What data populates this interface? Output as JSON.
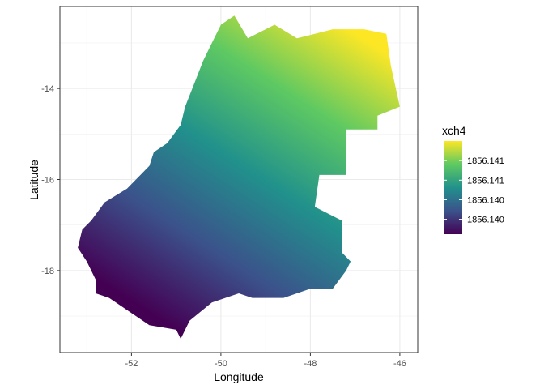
{
  "chart_data": {
    "type": "heatmap",
    "title": "",
    "xlabel": "Longitude",
    "ylabel": "Latitude",
    "xlim": [
      -53.6,
      -45.6
    ],
    "ylim": [
      -19.8,
      -12.2
    ],
    "x_ticks": [
      {
        "value": -52,
        "label": "-52"
      },
      {
        "value": -50,
        "label": "-50"
      },
      {
        "value": -48,
        "label": "-48"
      },
      {
        "value": -46,
        "label": "-46"
      }
    ],
    "y_ticks": [
      {
        "value": -14,
        "label": "-14"
      },
      {
        "value": -16,
        "label": "-16"
      },
      {
        "value": -18,
        "label": "-18"
      }
    ],
    "grid": true,
    "legend": {
      "title": "xch4",
      "position": "right",
      "labels": [
        "1856.141",
        "1856.141",
        "1856.140",
        "1856.140"
      ],
      "label_levels": [
        0.79,
        0.58,
        0.37,
        0.16
      ],
      "colors": [
        "#440154",
        "#3b528b",
        "#21918c",
        "#5ec962",
        "#fde725"
      ]
    },
    "region_outline_lonlat": [
      [
        -49.7,
        -12.4
      ],
      [
        -49.4,
        -12.9
      ],
      [
        -48.8,
        -12.6
      ],
      [
        -48.3,
        -12.9
      ],
      [
        -47.5,
        -12.7
      ],
      [
        -46.8,
        -12.7
      ],
      [
        -46.3,
        -12.8
      ],
      [
        -46.2,
        -13.5
      ],
      [
        -46.0,
        -14.4
      ],
      [
        -46.5,
        -14.6
      ],
      [
        -46.5,
        -14.9
      ],
      [
        -47.2,
        -14.9
      ],
      [
        -47.2,
        -15.9
      ],
      [
        -47.8,
        -15.9
      ],
      [
        -47.9,
        -16.6
      ],
      [
        -47.3,
        -16.9
      ],
      [
        -47.3,
        -17.6
      ],
      [
        -47.1,
        -17.8
      ],
      [
        -47.2,
        -18.0
      ],
      [
        -47.5,
        -18.4
      ],
      [
        -48.0,
        -18.4
      ],
      [
        -48.6,
        -18.6
      ],
      [
        -49.3,
        -18.6
      ],
      [
        -49.6,
        -18.5
      ],
      [
        -50.2,
        -18.7
      ],
      [
        -50.7,
        -19.1
      ],
      [
        -50.9,
        -19.5
      ],
      [
        -51.0,
        -19.3
      ],
      [
        -51.6,
        -19.2
      ],
      [
        -52.2,
        -18.8
      ],
      [
        -52.5,
        -18.6
      ],
      [
        -52.8,
        -18.5
      ],
      [
        -52.8,
        -18.2
      ],
      [
        -53.0,
        -17.8
      ],
      [
        -53.2,
        -17.5
      ],
      [
        -53.1,
        -17.1
      ],
      [
        -52.9,
        -16.9
      ],
      [
        -52.6,
        -16.5
      ],
      [
        -52.1,
        -16.2
      ],
      [
        -51.8,
        -15.9
      ],
      [
        -51.6,
        -15.7
      ],
      [
        -51.5,
        -15.4
      ],
      [
        -51.2,
        -15.2
      ],
      [
        -50.9,
        -14.8
      ],
      [
        -50.8,
        -14.4
      ],
      [
        -50.6,
        -13.9
      ],
      [
        -50.4,
        -13.4
      ],
      [
        -50.2,
        -13.0
      ],
      [
        -50.0,
        -12.6
      ],
      [
        -49.7,
        -12.4
      ]
    ]
  }
}
